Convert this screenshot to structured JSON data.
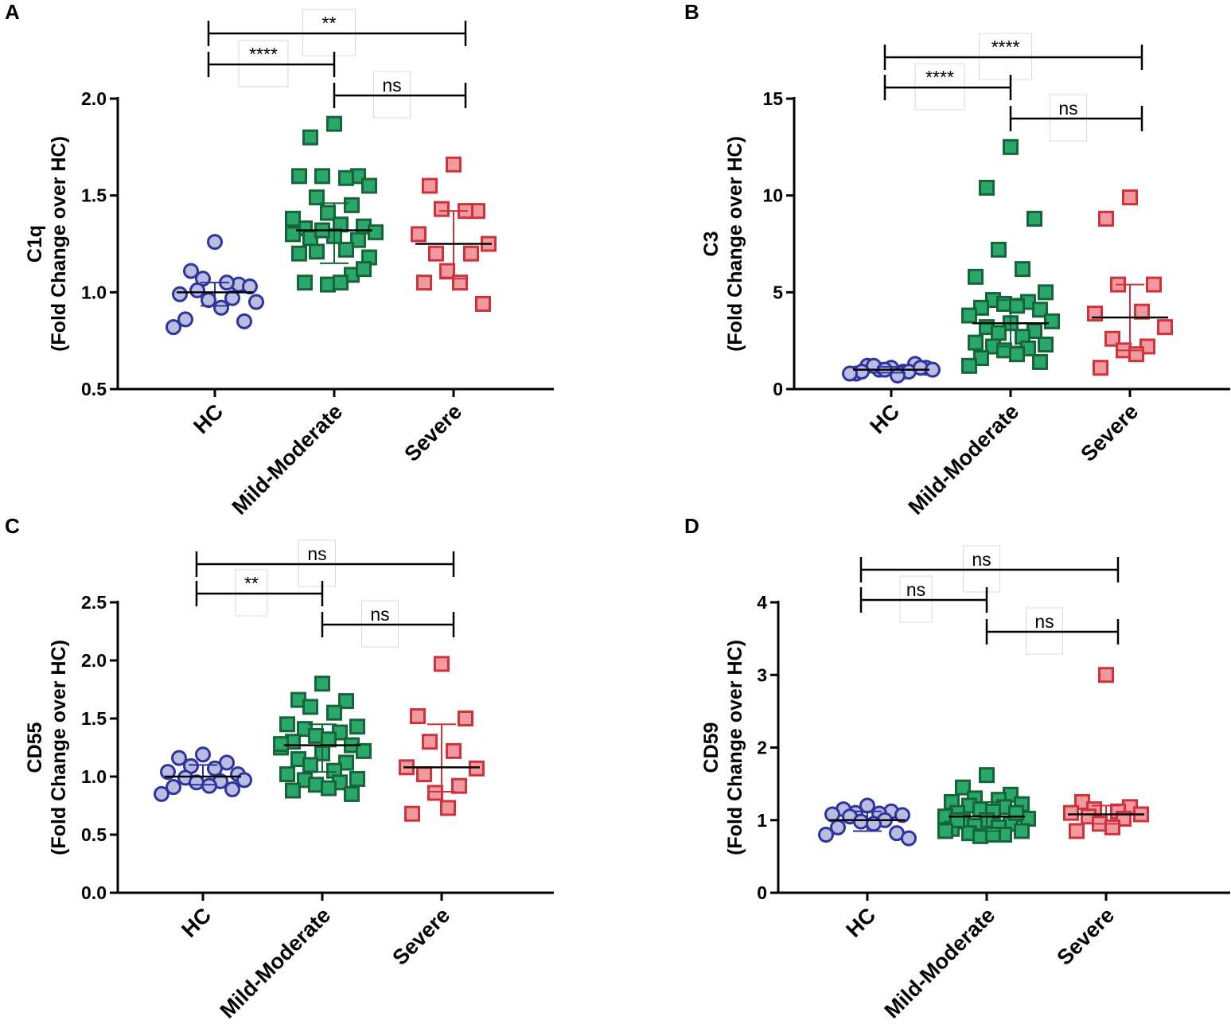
{
  "colors": {
    "hc_fill": "#b9bde0",
    "hc_stroke": "#2e33a0",
    "mm_fill": "#2aa86a",
    "mm_stroke": "#15643a",
    "sv_fill": "#f09aa0",
    "sv_stroke": "#d0323c",
    "axis": "#000000"
  },
  "categories": [
    "HC",
    "Mild-Moderate",
    "Severe"
  ],
  "chart_data": [
    {
      "panel": "A",
      "type": "scatter",
      "title": "",
      "ylabel_line1": "C1q",
      "ylabel_line2": "(Fold Change over HC)",
      "ylim": [
        0.5,
        2.0
      ],
      "yticks": [
        0.5,
        1.0,
        1.5,
        2.0
      ],
      "ytick_labels": [
        "0.5",
        "1.0",
        "1.5",
        "2.0"
      ],
      "categories": [
        "HC",
        "Mild-Moderate",
        "Severe"
      ],
      "series": [
        {
          "name": "HC",
          "marker": "circle",
          "median": 1.0,
          "q1": 0.93,
          "q3": 1.05,
          "values": [
            1.26,
            1.11,
            1.04,
            1.07,
            1.05,
            0.99,
            1.03,
            1.01,
            0.97,
            0.96,
            0.92,
            0.86,
            0.85,
            0.82,
            0.95
          ]
        },
        {
          "name": "Mild-Moderate",
          "marker": "square",
          "median": 1.32,
          "q1": 1.15,
          "q3": 1.46,
          "values": [
            1.87,
            1.8,
            1.6,
            1.6,
            1.59,
            1.6,
            1.55,
            1.49,
            1.45,
            1.41,
            1.35,
            1.33,
            1.34,
            1.3,
            1.31,
            1.29,
            1.28,
            1.27,
            1.32,
            1.22,
            1.2,
            1.18,
            1.21,
            1.09,
            1.04,
            1.05,
            1.05,
            1.12,
            1.38
          ]
        },
        {
          "name": "Severe",
          "marker": "square",
          "median": 1.25,
          "q1": 1.07,
          "q3": 1.42,
          "values": [
            1.66,
            1.55,
            1.42,
            1.43,
            1.42,
            1.3,
            1.25,
            1.2,
            1.2,
            1.11,
            1.05,
            1.05,
            0.94
          ]
        }
      ],
      "comparisons": [
        {
          "from": "HC",
          "to": "Severe",
          "label": "**"
        },
        {
          "from": "HC",
          "to": "Mild-Moderate",
          "label": "****"
        },
        {
          "from": "Mild-Moderate",
          "to": "Severe",
          "label": "ns"
        }
      ]
    },
    {
      "panel": "B",
      "type": "scatter",
      "title": "",
      "ylabel_line1": "C3",
      "ylabel_line2": "(Fold Change over HC)",
      "ylim": [
        0,
        15
      ],
      "yticks": [
        0,
        5,
        10,
        15
      ],
      "ytick_labels": [
        "0",
        "5",
        "10",
        "15"
      ],
      "categories": [
        "HC",
        "Mild-Moderate",
        "Severe"
      ],
      "series": [
        {
          "name": "HC",
          "marker": "circle",
          "median": 1.0,
          "q1": 0.85,
          "q3": 1.15,
          "values": [
            1.1,
            1.2,
            1.3,
            1.0,
            0.9,
            0.8,
            1.1,
            1.2,
            0.9,
            1.0,
            0.7,
            0.9,
            1.1,
            0.8,
            1.0
          ]
        },
        {
          "name": "Mild-Moderate",
          "marker": "square",
          "median": 3.4,
          "q1": 2.2,
          "q3": 4.6,
          "values": [
            12.5,
            10.4,
            8.8,
            7.2,
            6.2,
            5.8,
            5.0,
            4.6,
            4.5,
            4.4,
            4.3,
            4.2,
            4.1,
            3.8,
            3.5,
            3.4,
            3.2,
            3.0,
            2.9,
            2.7,
            2.4,
            2.3,
            2.2,
            2.1,
            2.0,
            1.8,
            1.6,
            1.4,
            1.2
          ]
        },
        {
          "name": "Severe",
          "marker": "square",
          "median": 3.7,
          "q1": 2.0,
          "q3": 5.4,
          "values": [
            9.9,
            8.8,
            5.4,
            5.4,
            4.0,
            3.9,
            3.2,
            2.6,
            2.2,
            2.0,
            1.8,
            1.1
          ]
        }
      ],
      "comparisons": [
        {
          "from": "HC",
          "to": "Severe",
          "label": "****"
        },
        {
          "from": "HC",
          "to": "Mild-Moderate",
          "label": "****"
        },
        {
          "from": "Mild-Moderate",
          "to": "Severe",
          "label": "ns"
        }
      ]
    },
    {
      "panel": "C",
      "type": "scatter",
      "title": "",
      "ylabel_line1": "CD55",
      "ylabel_line2": "(Fold Change over HC)",
      "ylim": [
        0.0,
        2.5
      ],
      "yticks": [
        0.0,
        0.5,
        1.0,
        1.5,
        2.0,
        2.5
      ],
      "ytick_labels": [
        "0.0",
        "0.5",
        "1.0",
        "1.5",
        "2.0",
        "2.5"
      ],
      "categories": [
        "HC",
        "Mild-Moderate",
        "Severe"
      ],
      "series": [
        {
          "name": "HC",
          "marker": "circle",
          "median": 1.0,
          "q1": 0.93,
          "q3": 1.1,
          "values": [
            1.19,
            1.16,
            1.12,
            1.09,
            1.07,
            1.04,
            1.02,
            0.99,
            0.96,
            0.95,
            0.92,
            0.91,
            0.89,
            0.85,
            0.97
          ]
        },
        {
          "name": "Mild-Moderate",
          "marker": "square",
          "median": 1.27,
          "q1": 1.04,
          "q3": 1.45,
          "values": [
            1.8,
            1.66,
            1.65,
            1.6,
            1.55,
            1.45,
            1.43,
            1.41,
            1.38,
            1.35,
            1.32,
            1.3,
            1.27,
            1.25,
            1.22,
            1.2,
            1.15,
            1.12,
            1.1,
            1.05,
            1.02,
            0.98,
            0.97,
            0.95,
            0.93,
            0.9,
            0.88,
            0.85,
            1.28
          ]
        },
        {
          "name": "Severe",
          "marker": "square",
          "median": 1.08,
          "q1": 0.87,
          "q3": 1.45,
          "values": [
            1.97,
            1.52,
            1.5,
            1.3,
            1.22,
            1.08,
            1.07,
            1.02,
            0.92,
            0.86,
            0.73,
            0.68
          ]
        }
      ],
      "comparisons": [
        {
          "from": "HC",
          "to": "Severe",
          "label": "ns"
        },
        {
          "from": "HC",
          "to": "Mild-Moderate",
          "label": "**"
        },
        {
          "from": "Mild-Moderate",
          "to": "Severe",
          "label": "ns"
        }
      ]
    },
    {
      "panel": "D",
      "type": "scatter",
      "title": "",
      "ylabel_line1": "CD59",
      "ylabel_line2": "(Fold Change over HC)",
      "ylim": [
        0,
        4
      ],
      "yticks": [
        0,
        1,
        2,
        3,
        4
      ],
      "ytick_labels": [
        "0",
        "1",
        "2",
        "3",
        "4"
      ],
      "categories": [
        "HC",
        "Mild-Moderate",
        "Severe"
      ],
      "series": [
        {
          "name": "HC",
          "marker": "circle",
          "median": 1.0,
          "q1": 0.85,
          "q3": 1.12,
          "values": [
            1.2,
            1.15,
            1.12,
            1.1,
            1.09,
            1.08,
            1.07,
            1.05,
            1.0,
            0.98,
            0.95,
            0.9,
            0.82,
            0.8,
            0.75
          ]
        },
        {
          "name": "Mild-Moderate",
          "marker": "square",
          "median": 1.05,
          "q1": 0.85,
          "q3": 1.25,
          "values": [
            1.62,
            1.45,
            1.35,
            1.3,
            1.28,
            1.25,
            1.22,
            1.2,
            1.18,
            1.15,
            1.12,
            1.1,
            1.08,
            1.05,
            1.02,
            1.0,
            0.98,
            0.95,
            0.92,
            0.9,
            0.88,
            0.85,
            0.82,
            0.8,
            0.78,
            0.8,
            1.0,
            1.1,
            0.85
          ]
        },
        {
          "name": "Severe",
          "marker": "square",
          "median": 1.08,
          "q1": 0.95,
          "q3": 1.2,
          "values": [
            3.0,
            1.25,
            1.18,
            1.15,
            1.12,
            1.1,
            1.08,
            1.05,
            1.02,
            0.95,
            0.9,
            0.85
          ]
        }
      ],
      "comparisons": [
        {
          "from": "HC",
          "to": "Severe",
          "label": "ns"
        },
        {
          "from": "HC",
          "to": "Mild-Moderate",
          "label": "ns"
        },
        {
          "from": "Mild-Moderate",
          "to": "Severe",
          "label": "ns"
        }
      ]
    }
  ]
}
